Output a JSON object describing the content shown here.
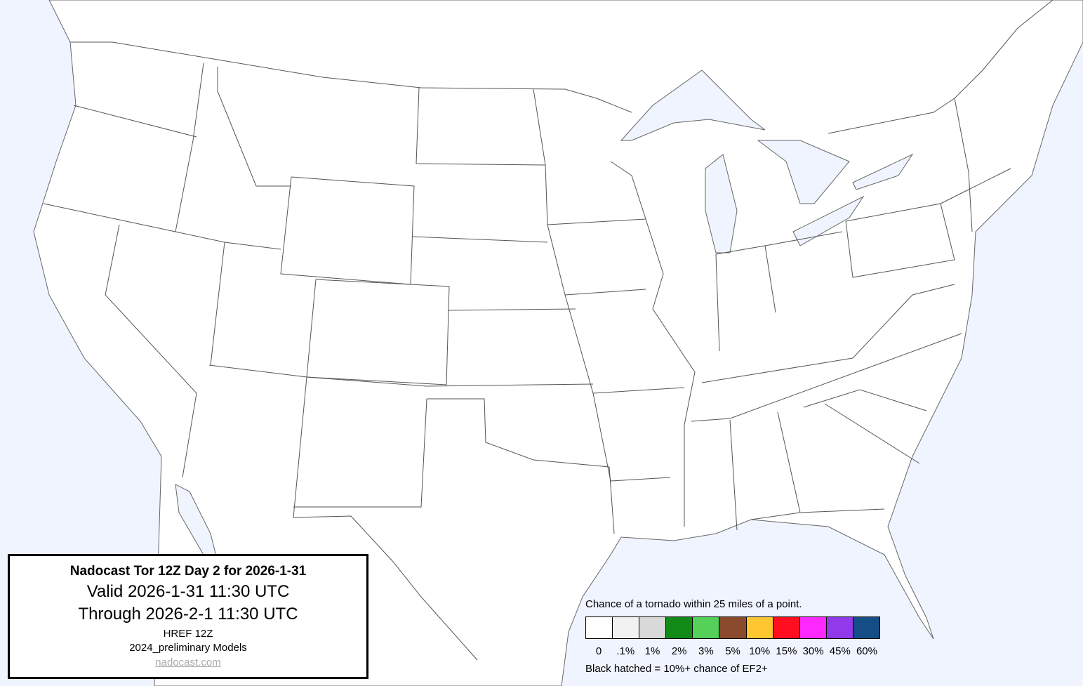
{
  "title_box": {
    "title": "Nadocast Tor 12Z Day 2 for 2026-1-31",
    "valid": "Valid 2026-1-31 11:30 UTC",
    "through": "Through 2026-2-1 11:30 UTC",
    "model": "HREF 12Z",
    "models_version": "2024_preliminary Models",
    "link": "nadocast.com"
  },
  "legend": {
    "title": "Chance of a tornado within 25 miles of a point.",
    "note": "Black hatched = 10%+ chance of EF2+",
    "items": [
      {
        "label": "0",
        "color": "#ffffff"
      },
      {
        "label": ".1%",
        "color": "#f2f2f2"
      },
      {
        "label": "1%",
        "color": "#d9d9d9"
      },
      {
        "label": "2%",
        "color": "#118a17"
      },
      {
        "label": "3%",
        "color": "#55d159"
      },
      {
        "label": "5%",
        "color": "#8a4a2b"
      },
      {
        "label": "10%",
        "color": "#fec631"
      },
      {
        "label": "15%",
        "color": "#fe0e1e"
      },
      {
        "label": "30%",
        "color": "#fe29fe"
      },
      {
        "label": "45%",
        "color": "#9239ea"
      },
      {
        "label": "60%",
        "color": "#154e87"
      }
    ]
  },
  "map": {
    "water_color": "#eff4fe",
    "land_color": "#ffffff",
    "border_color": "#555555"
  }
}
